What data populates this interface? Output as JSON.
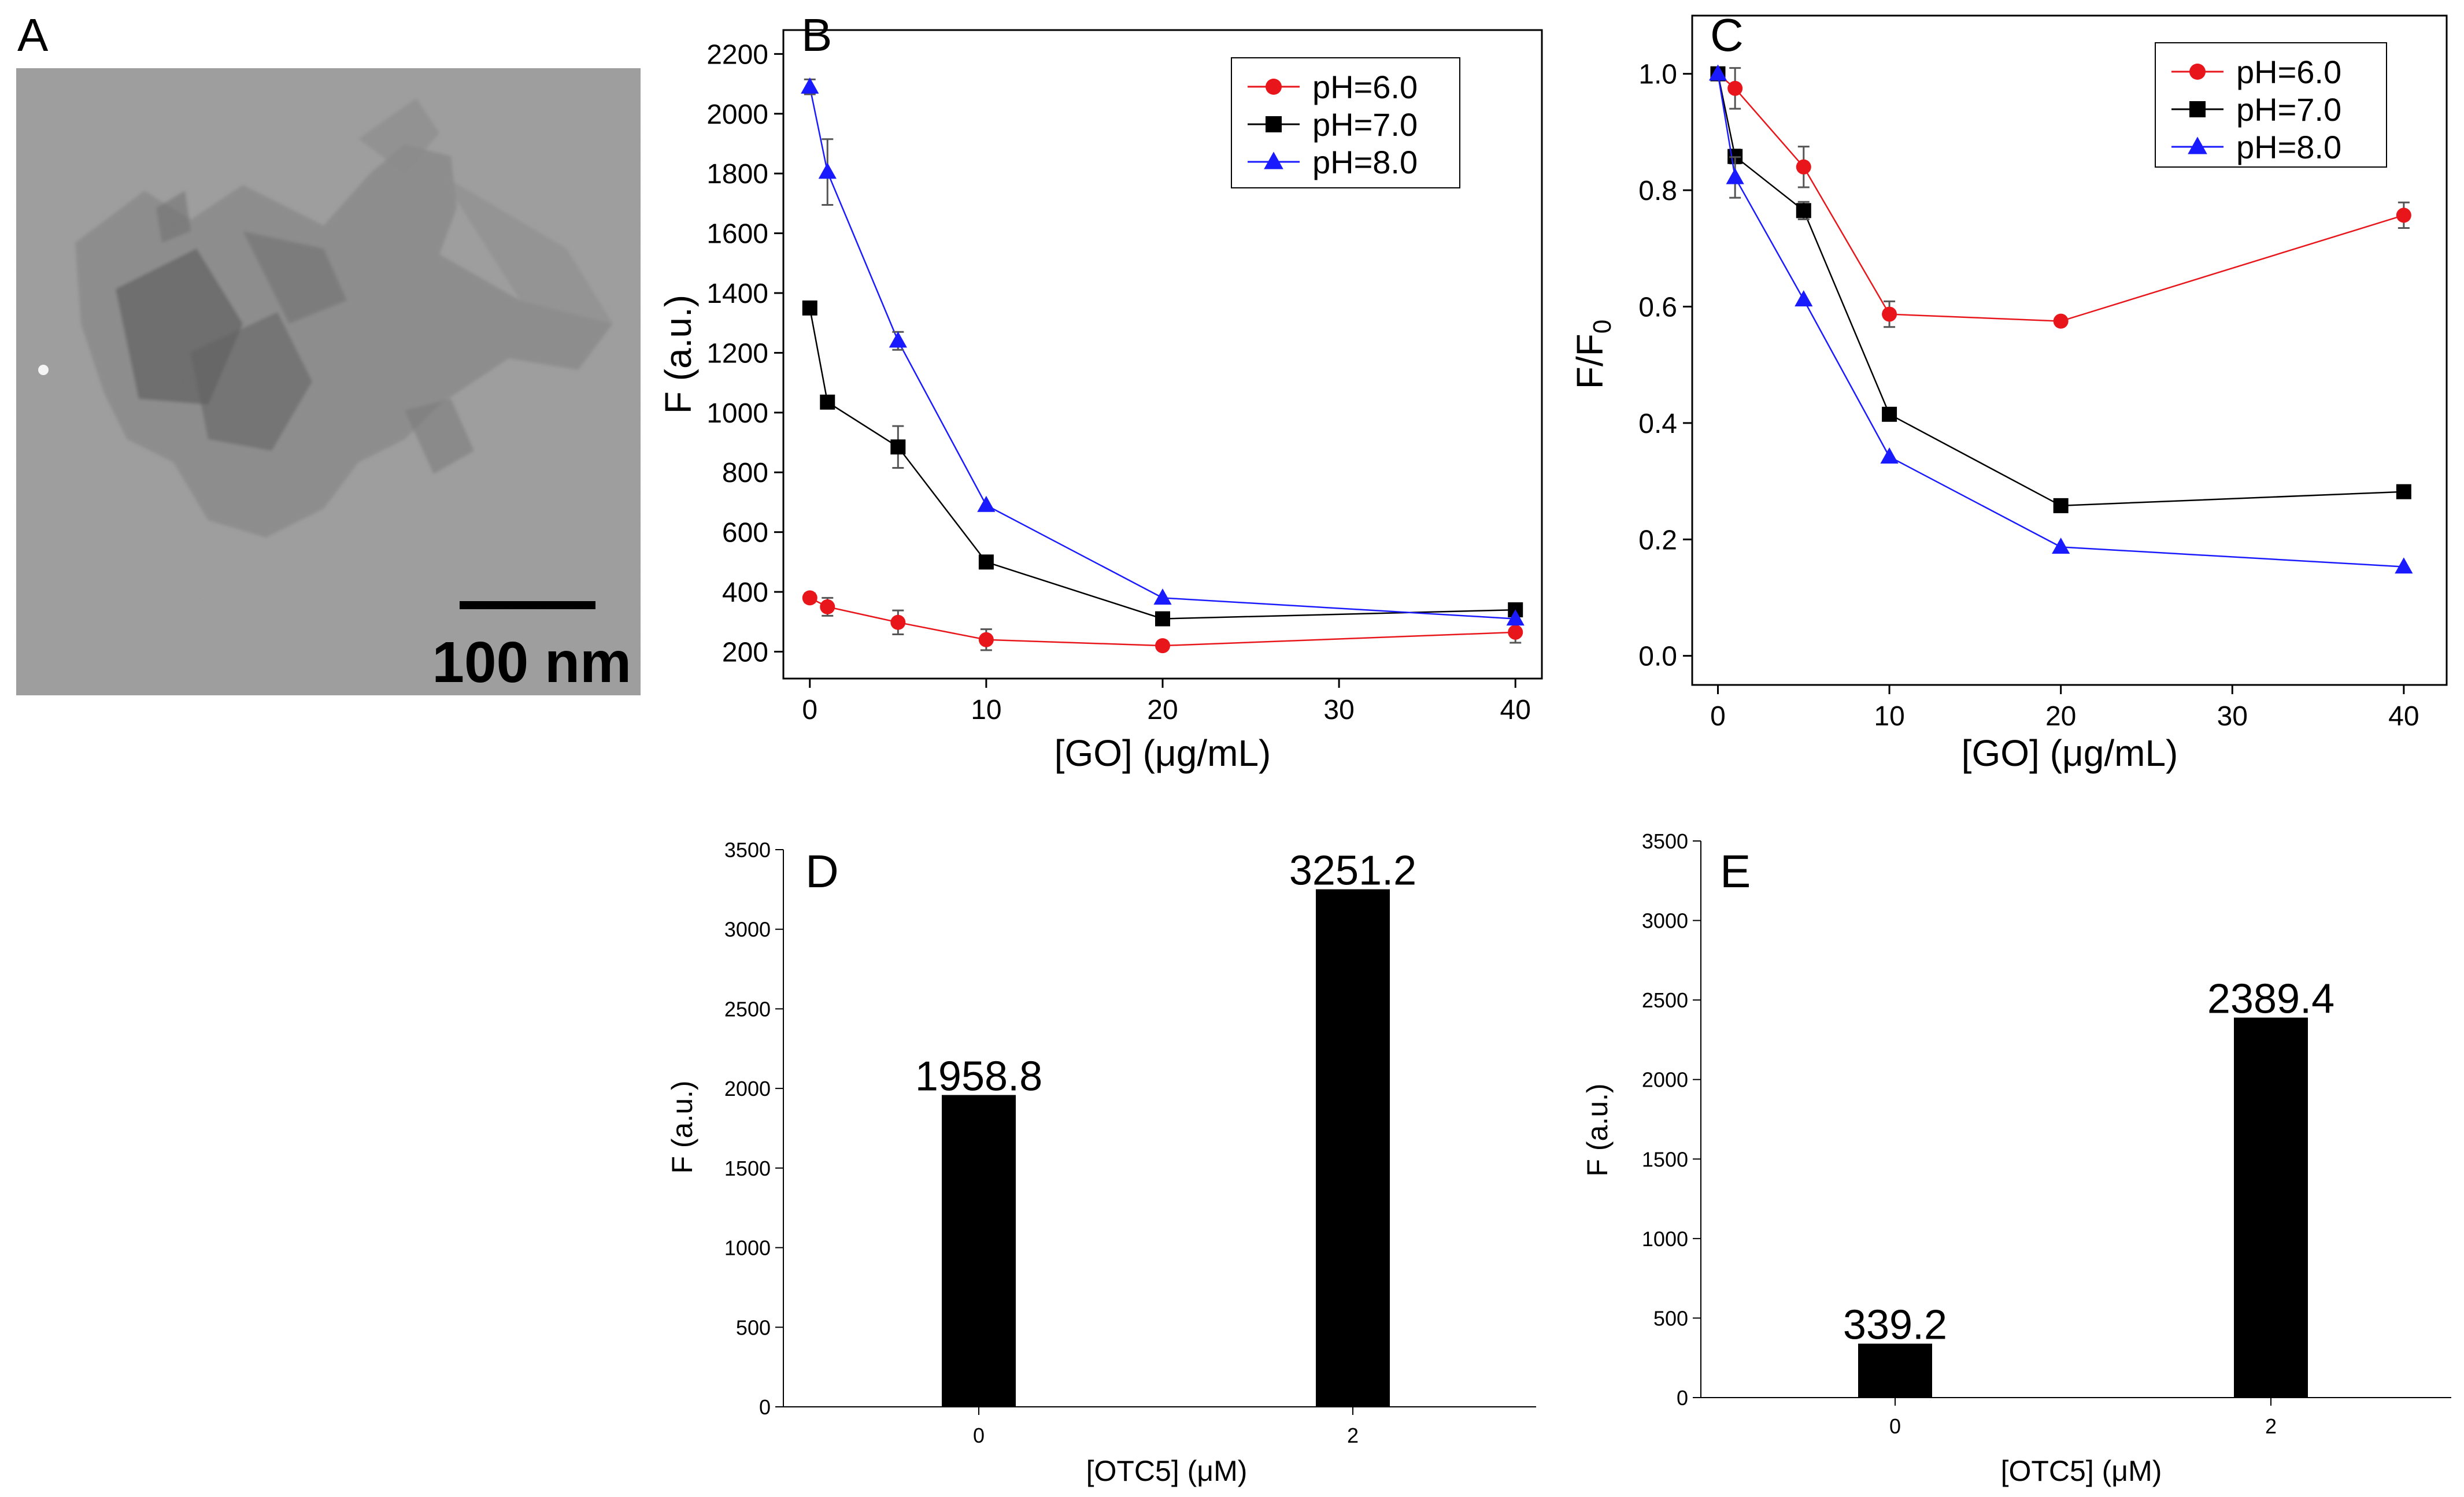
{
  "panels": {
    "A": {
      "letter": "A",
      "scale_bar_label": "100 nm"
    },
    "B": {
      "letter": "B"
    },
    "C": {
      "letter": "C"
    },
    "D": {
      "letter": "D"
    },
    "E": {
      "letter": "E"
    }
  },
  "colors": {
    "pH6": "#e8161b",
    "pH7": "#000000",
    "pH8": "#1a1aff",
    "bar": "#000000",
    "tem_background": "#9b9b9b"
  },
  "chart_data": [
    {
      "id": "B",
      "type": "line",
      "title": "",
      "xlabel": "[GO] (μg/mL)",
      "ylabel": "F (a.u.)",
      "xlim": [
        -1.5,
        41.5
      ],
      "ylim": [
        110,
        2280
      ],
      "xticks": [
        0,
        10,
        20,
        30,
        40
      ],
      "yticks": [
        200,
        400,
        600,
        800,
        1000,
        1200,
        1400,
        1600,
        1800,
        2000,
        2200
      ],
      "legend_position": "top-right",
      "x": [
        0,
        1,
        5,
        10,
        20,
        40
      ],
      "series": [
        {
          "name": "pH=6.0",
          "marker": "circle",
          "color": "#e8161b",
          "values": [
            380,
            350,
            298,
            240,
            220,
            265
          ],
          "errors": [
            15,
            30,
            40,
            35,
            10,
            35
          ]
        },
        {
          "name": "pH=7.0",
          "marker": "square",
          "color": "#000000",
          "values": [
            1350,
            1035,
            885,
            500,
            310,
            340
          ],
          "errors": [
            0,
            0,
            70,
            0,
            0,
            0
          ]
        },
        {
          "name": "pH=8.0",
          "marker": "triangle",
          "color": "#1a1aff",
          "values": [
            2090,
            1805,
            1240,
            690,
            380,
            310
          ],
          "errors": [
            25,
            110,
            30,
            0,
            0,
            0
          ]
        }
      ]
    },
    {
      "id": "C",
      "type": "line",
      "title": "",
      "xlabel": "[GO] (μg/mL)",
      "ylabel": "F/F",
      "ylabel_subscript": "0",
      "xlim": [
        -1.5,
        42.5
      ],
      "ylim": [
        -0.05,
        1.1
      ],
      "xticks": [
        0,
        10,
        20,
        30,
        40
      ],
      "yticks": [
        0.0,
        0.2,
        0.4,
        0.6,
        0.8,
        1.0
      ],
      "ytick_labels": [
        "0.0",
        "0.2",
        "0.4",
        "0.6",
        "0.8",
        "1.0"
      ],
      "legend_position": "top-right",
      "x": [
        0,
        1,
        5,
        10,
        20,
        40
      ],
      "series": [
        {
          "name": "pH=6.0",
          "marker": "circle",
          "color": "#e8161b",
          "values": [
            1.0,
            0.975,
            0.84,
            0.587,
            0.575,
            0.757
          ],
          "errors": [
            0,
            0.035,
            0.035,
            0.022,
            0,
            0.022
          ]
        },
        {
          "name": "pH=7.0",
          "marker": "square",
          "color": "#000000",
          "values": [
            1.0,
            0.858,
            0.765,
            0.415,
            0.258,
            0.282
          ],
          "errors": [
            0,
            0.012,
            0.015,
            0,
            0,
            0
          ]
        },
        {
          "name": "pH=8.0",
          "marker": "triangle",
          "color": "#1a1aff",
          "values": [
            1.0,
            0.822,
            0.612,
            0.342,
            0.187,
            0.153
          ],
          "errors": [
            0,
            0.035,
            0,
            0,
            0,
            0
          ]
        }
      ]
    },
    {
      "id": "D",
      "type": "bar",
      "title": "",
      "xlabel": "[OTC5] (μM)",
      "ylabel": "F (a.u.)",
      "categories": [
        "0",
        "2"
      ],
      "values": [
        1958.8,
        3251.2
      ],
      "value_labels": [
        "1958.8",
        "3251.2"
      ],
      "ylim": [
        0,
        3500
      ],
      "yticks": [
        0,
        500,
        1000,
        1500,
        2000,
        2500,
        3000,
        3500
      ]
    },
    {
      "id": "E",
      "type": "bar",
      "title": "",
      "xlabel": "[OTC5] (μM)",
      "ylabel": "F (a.u.)",
      "categories": [
        "0",
        "2"
      ],
      "values": [
        339.2,
        2389.4
      ],
      "value_labels": [
        "339.2",
        "2389.4"
      ],
      "ylim": [
        0,
        3500
      ],
      "yticks": [
        0,
        500,
        1000,
        1500,
        2000,
        2500,
        3000,
        3500
      ]
    }
  ]
}
